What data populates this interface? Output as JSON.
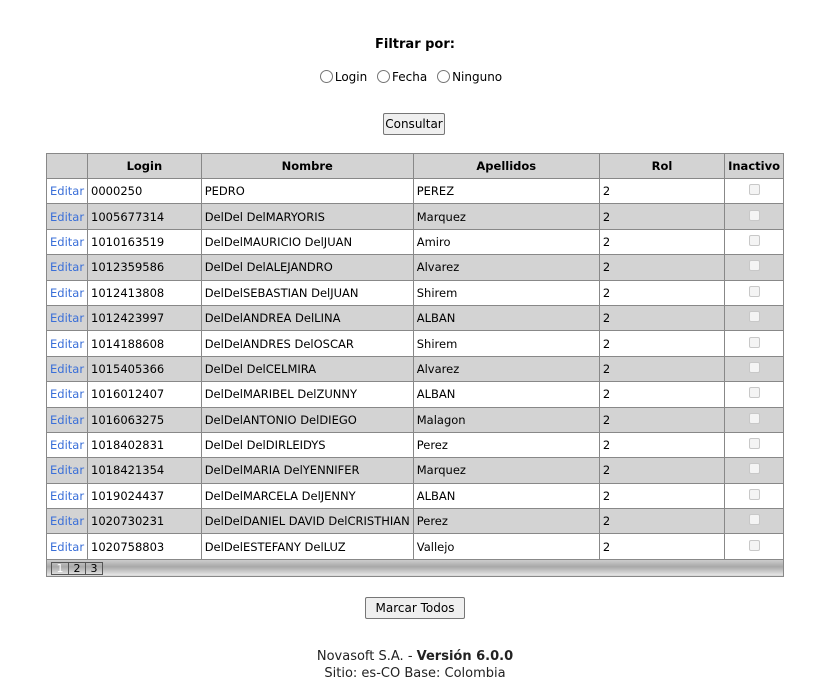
{
  "filter": {
    "title": "Filtrar por:",
    "options": [
      "Login",
      "Fecha",
      "Ninguno"
    ],
    "consultar": "Consultar"
  },
  "table": {
    "headers": [
      "",
      "Login",
      "Nombre",
      "Apellidos",
      "Rol",
      "Inactivo"
    ],
    "edit_label": "Editar",
    "rows": [
      {
        "login": "0000250",
        "nombre": "PEDRO",
        "apellidos": "PEREZ",
        "rol": "2",
        "inactivo": false
      },
      {
        "login": "1005677314",
        "nombre": "DelDel DelMARYORIS",
        "apellidos": "Marquez",
        "rol": "2",
        "inactivo": false
      },
      {
        "login": "1010163519",
        "nombre": "DelDelMAURICIO DelJUAN",
        "apellidos": "Amiro",
        "rol": "2",
        "inactivo": false
      },
      {
        "login": "1012359586",
        "nombre": "DelDel DelALEJANDRO",
        "apellidos": "Alvarez",
        "rol": "2",
        "inactivo": false
      },
      {
        "login": "1012413808",
        "nombre": "DelDelSEBASTIAN DelJUAN",
        "apellidos": "Shirem",
        "rol": "2",
        "inactivo": false
      },
      {
        "login": "1012423997",
        "nombre": "DelDelANDREA DelLINA",
        "apellidos": "ALBAN",
        "rol": "2",
        "inactivo": false
      },
      {
        "login": "1014188608",
        "nombre": "DelDelANDRES DelOSCAR",
        "apellidos": "Shirem",
        "rol": "2",
        "inactivo": false
      },
      {
        "login": "1015405366",
        "nombre": "DelDel DelCELMIRA",
        "apellidos": "Alvarez",
        "rol": "2",
        "inactivo": false
      },
      {
        "login": "1016012407",
        "nombre": "DelDelMARIBEL DelZUNNY",
        "apellidos": "ALBAN",
        "rol": "2",
        "inactivo": false
      },
      {
        "login": "1016063275",
        "nombre": "DelDelANTONIO DelDIEGO",
        "apellidos": "Malagon",
        "rol": "2",
        "inactivo": false
      },
      {
        "login": "1018402831",
        "nombre": "DelDel DelDIRLEIDYS",
        "apellidos": "Perez",
        "rol": "2",
        "inactivo": false
      },
      {
        "login": "1018421354",
        "nombre": "DelDelMARIA DelYENNIFER",
        "apellidos": "Marquez",
        "rol": "2",
        "inactivo": false
      },
      {
        "login": "1019024437",
        "nombre": "DelDelMARCELA DelJENNY",
        "apellidos": "ALBAN",
        "rol": "2",
        "inactivo": false
      },
      {
        "login": "1020730231",
        "nombre": "DelDelDANIEL DAVID DelCRISTHIAN",
        "apellidos": "Perez",
        "rol": "2",
        "inactivo": false
      },
      {
        "login": "1020758803",
        "nombre": "DelDelESTEFANY DelLUZ",
        "apellidos": "Vallejo",
        "rol": "2",
        "inactivo": false
      }
    ],
    "pages": [
      "1",
      "2",
      "3"
    ],
    "current_page": "1"
  },
  "marcar_todos": "Marcar Todos",
  "footer": {
    "company": "Novasoft S.A. - ",
    "version": "Versión 6.0.0",
    "site": "Sitio: es-CO Base: Colombia"
  }
}
